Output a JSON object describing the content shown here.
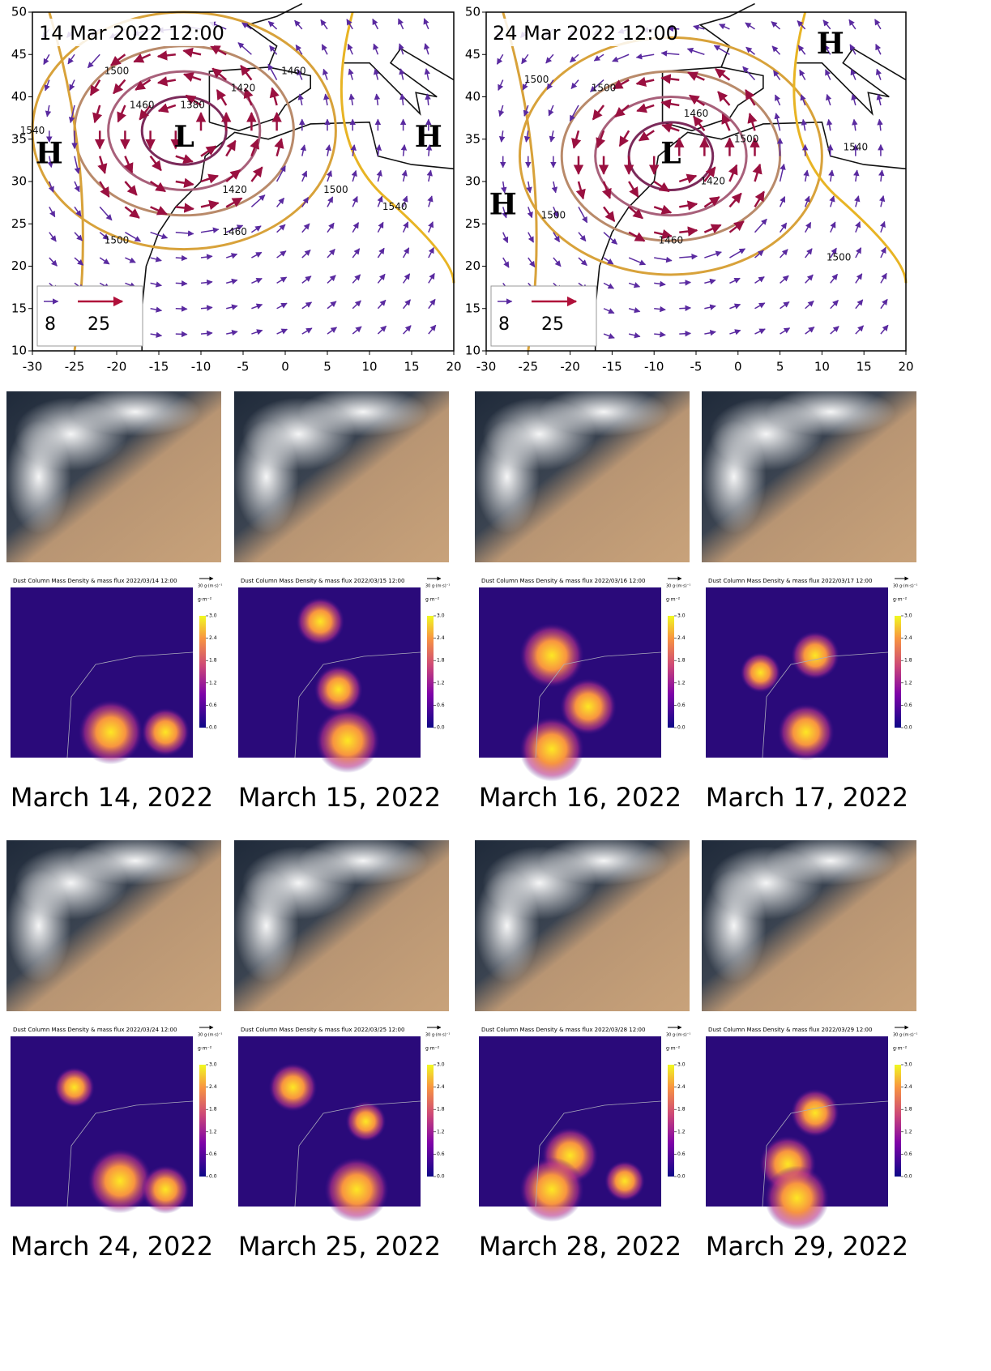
{
  "map_axes": {
    "xlim": [
      -30,
      20
    ],
    "ylim": [
      10,
      50
    ],
    "xticks": [
      -30,
      -25,
      -20,
      -15,
      -10,
      -5,
      0,
      5,
      10,
      15,
      20
    ],
    "yticks": [
      10,
      15,
      20,
      25,
      30,
      35,
      40,
      45,
      50
    ]
  },
  "weather_maps": [
    {
      "title": "14 Mar 2022 12:00",
      "systems": [
        "H",
        "L",
        "H"
      ],
      "contour_labels": [
        1500,
        1460,
        1540,
        1380,
        1420,
        1460,
        1420,
        1500,
        1540,
        1460,
        1500
      ],
      "legend": [
        8,
        25
      ]
    },
    {
      "title": "24 Mar 2022 12:00",
      "systems": [
        "H",
        "L",
        "H"
      ],
      "contour_labels": [
        1500,
        1500,
        1460,
        1500,
        1540,
        1420,
        1460,
        1500,
        1500
      ],
      "legend": [
        8,
        25
      ]
    }
  ],
  "dust_colorbar": {
    "unit": "g·m⁻²",
    "scale_label": "30 g·(m·s)⁻¹",
    "lim": [
      0,
      3
    ],
    "ticks": [
      {
        "value": 0,
        "label": "0.0"
      },
      0.6,
      1.2,
      1.8,
      2.4,
      {
        "value": 3,
        "label": "3.0"
      }
    ]
  },
  "days": [
    {
      "caption": "March 14, 2022",
      "dust_title": "Dust Column Mass Density & mass flux 2022/03/14 12:00"
    },
    {
      "caption": "March 15, 2022",
      "dust_title": "Dust Column Mass Density & mass flux 2022/03/15 12:00"
    },
    {
      "caption": "March 16, 2022",
      "dust_title": "Dust Column Mass Density & mass flux 2022/03/16 12:00"
    },
    {
      "caption": "March 17, 2022",
      "dust_title": "Dust Column Mass Density & mass flux 2022/03/17 12:00"
    },
    {
      "caption": "March 24, 2022",
      "dust_title": "Dust Column Mass Density & mass flux 2022/03/24 12:00"
    },
    {
      "caption": "March 25, 2022",
      "dust_title": "Dust Column Mass Density & mass flux 2022/03/25 12:00"
    },
    {
      "caption": "March 28, 2022",
      "dust_title": "Dust Column Mass Density & mass flux 2022/03/28 12:00"
    },
    {
      "caption": "March 29, 2022",
      "dust_title": "Dust Column Mass Density & mass flux 2022/03/29 12:00"
    }
  ]
}
